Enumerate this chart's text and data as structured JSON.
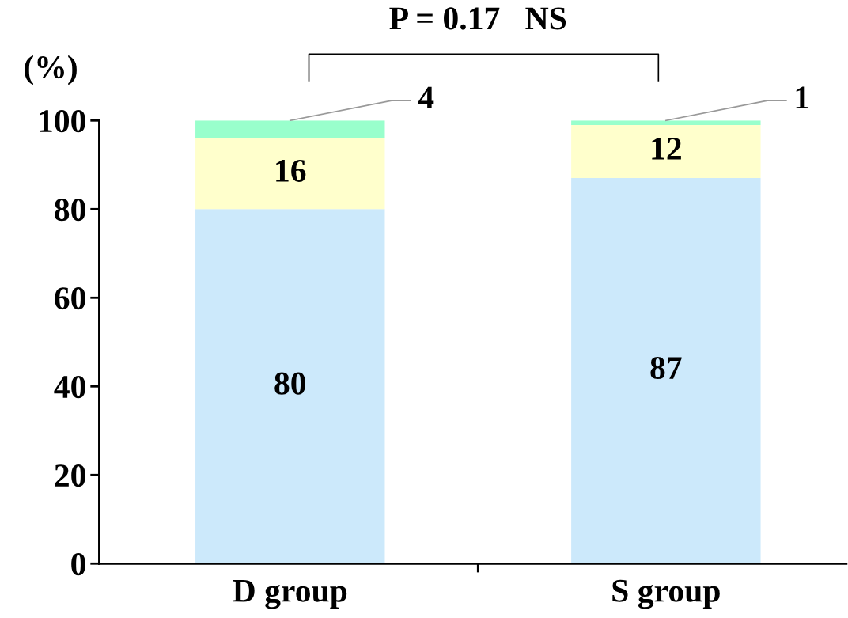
{
  "chart_data": {
    "type": "bar",
    "stacked": true,
    "ylabel": "(%)",
    "categories": [
      "D group",
      "S group"
    ],
    "series": [
      {
        "color": "#cce9fb",
        "values": [
          80,
          87
        ]
      },
      {
        "color": "#ffffcc",
        "values": [
          16,
          12
        ]
      },
      {
        "color": "#99ffcc",
        "values": [
          4,
          1
        ]
      }
    ],
    "data_labels": true,
    "ylim": [
      0,
      100
    ],
    "yticks": [
      0,
      20,
      40,
      60,
      80,
      100
    ],
    "annotations": [
      "P = 0.17   NS"
    ],
    "grid": false,
    "legend": false
  }
}
